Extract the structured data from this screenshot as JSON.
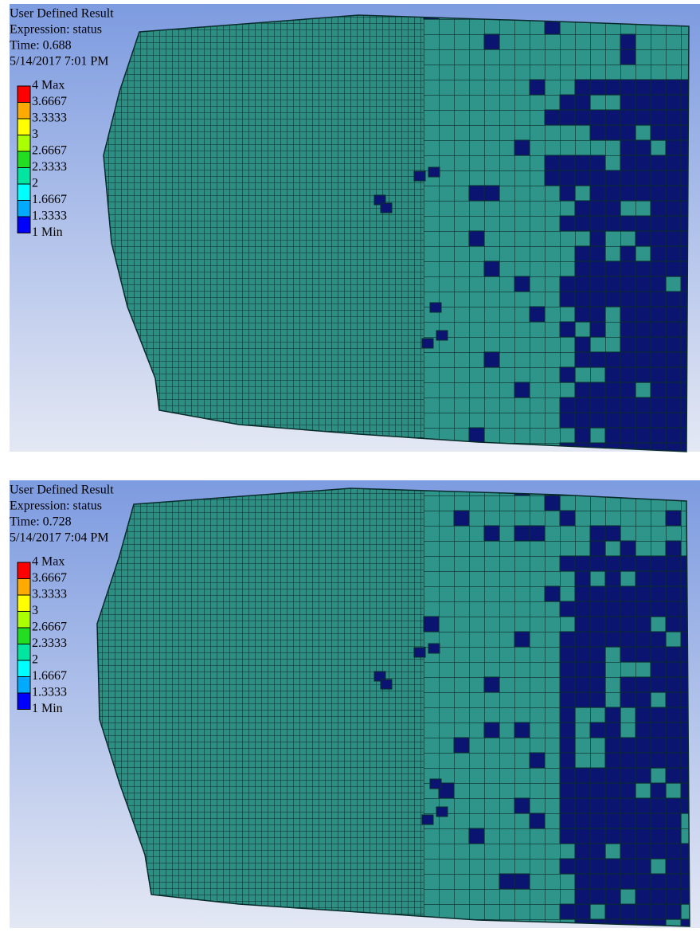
{
  "panels": [
    {
      "title": "User Defined Result",
      "expression": "Expression: status",
      "time": "Time: 0.688",
      "date": "5/14/2017 7:01 PM",
      "legend": {
        "labels": [
          "4 Max",
          "3.6667",
          "3.3333",
          "3",
          "2.6667",
          "2.3333",
          "2",
          "1.6667",
          "1.3333",
          "1 Min"
        ],
        "colors": [
          "#ff0000",
          "#ffaa00",
          "#ffff00",
          "#aaff00",
          "#22dd22",
          "#00e6a0",
          "#00ffff",
          "#00aaff",
          "#0000ff"
        ]
      }
    },
    {
      "title": "User Defined Result",
      "expression": "Expression: status",
      "time": "Time: 0.728",
      "date": "5/14/2017 7:04 PM",
      "legend": {
        "labels": [
          "4 Max",
          "3.6667",
          "3.3333",
          "3",
          "2.6667",
          "2.3333",
          "2",
          "1.6667",
          "1.3333",
          "1 Min"
        ],
        "colors": [
          "#ff0000",
          "#ffaa00",
          "#ffff00",
          "#aaff00",
          "#22dd22",
          "#00e6a0",
          "#00ffff",
          "#00aaff",
          "#0000ff"
        ]
      }
    }
  ]
}
